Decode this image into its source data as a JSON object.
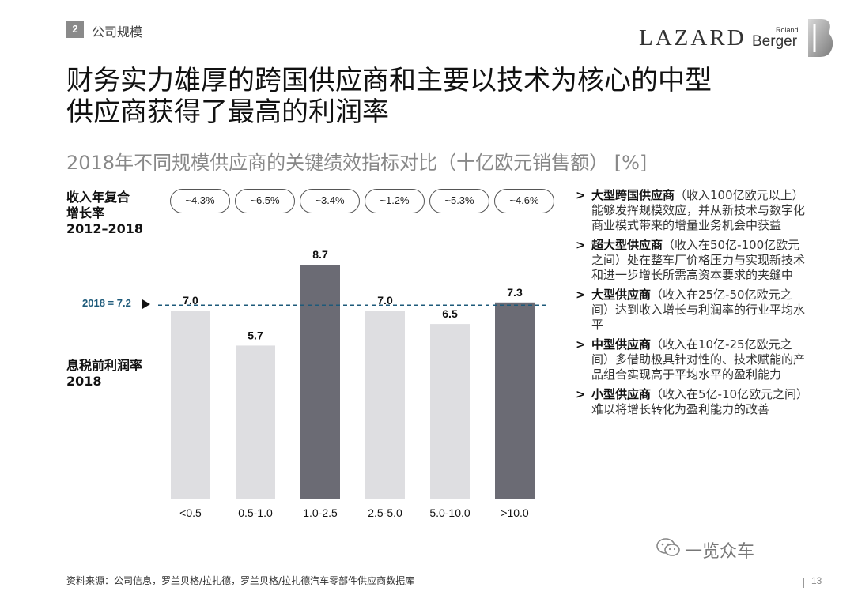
{
  "header": {
    "section_number": "2",
    "section_title": "公司规模",
    "logo_lazard": "LAZARD",
    "logo_rb_small": "Roland",
    "logo_rb_big": "Berger"
  },
  "title": {
    "line1": "财务实力雄厚的跨国供应商和主要以技术为核心的中型",
    "line2": "供应商获得了最高的利润率"
  },
  "subtitle": "2018年不同规模供应商的关键绩效指标对比（十亿欧元销售额） [%]",
  "cagr_label": {
    "line1": "收入年复合",
    "line2": "增长率",
    "line3": "2012–2018"
  },
  "ebit_label": {
    "line1": "息税前利润率",
    "line2": "2018"
  },
  "reference": {
    "label": "2018 = 7.2",
    "value": 7.2,
    "color": "#1d5a7a"
  },
  "colors": {
    "bar_light": "#dedee1",
    "bar_dark": "#6b6b74",
    "text_dark": "#111111"
  },
  "chart_data": {
    "type": "bar",
    "categories": [
      "<0.5",
      "0.5-1.0",
      "1.0-2.5",
      "2.5-5.0",
      "5.0-10.0",
      ">10.0"
    ],
    "values": [
      7.0,
      5.7,
      8.7,
      7.0,
      6.5,
      7.3
    ],
    "value_labels": [
      "7.0",
      "5.7",
      "8.7",
      "7.0",
      "6.5",
      "7.3"
    ],
    "highlight": [
      false,
      false,
      true,
      false,
      false,
      true
    ],
    "cagr": [
      "~4.3%",
      "~6.5%",
      "~3.4%",
      "~1.2%",
      "~5.3%",
      "~4.6%"
    ],
    "reference_line": 7.2,
    "ylim": [
      0,
      8.7
    ],
    "xlabel": "",
    "ylabel": "息税前利润率 2018"
  },
  "notes": [
    {
      "bullet": ">",
      "term": "大型跨国供应商",
      "text": "（收入100亿欧元以上）能够发挥规模效应，并从新技术与数字化商业模式带来的增量业务机会中获益"
    },
    {
      "bullet": ">",
      "term": "超大型供应商",
      "text": "（收入在50亿-100亿欧元之间）处在整车厂价格压力与实现新技术和进一步增长所需高资本要求的夹缝中"
    },
    {
      "bullet": ">",
      "term": "大型供应商",
      "text": "（收入在25亿-50亿欧元之间）达到收入增长与利润率的行业平均水平"
    },
    {
      "bullet": ">",
      "term": "中型供应商",
      "text": "（收入在10亿-25亿欧元之间）多借助极具针对性的、技术赋能的产品组合实现高于平均水平的盈利能力"
    },
    {
      "bullet": ">",
      "term": "小型供应商",
      "text": "（收入在5亿-10亿欧元之间）难以将增长转化为盈利能力的改善"
    }
  ],
  "watermark": "一览众车",
  "footer": {
    "source": "资料来源：公司信息，罗兰贝格/拉扎德，罗兰贝格/拉扎德汽车零部件供应商数据库",
    "page": "13"
  }
}
